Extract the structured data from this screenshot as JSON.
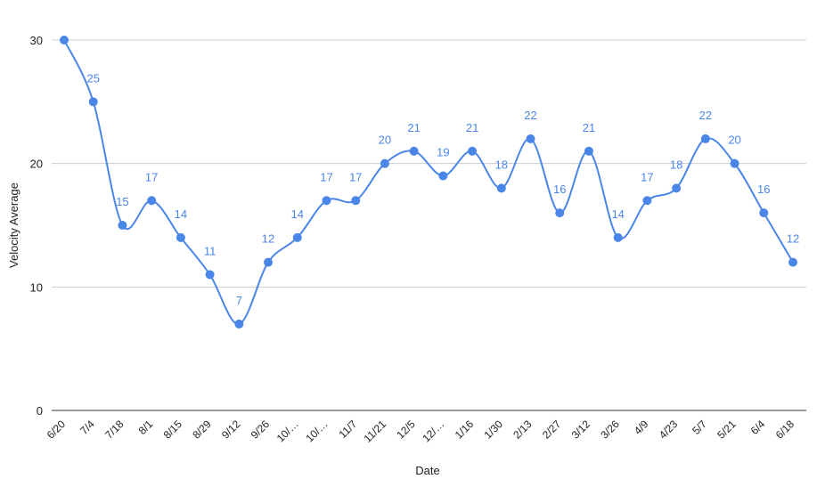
{
  "chart_data": {
    "type": "line",
    "xlabel": "Date",
    "ylabel": "Velocity Average",
    "ylim": [
      0,
      30
    ],
    "yticks": [
      0,
      10,
      20,
      30
    ],
    "grid": true,
    "legend": "none",
    "smooth": true,
    "series_color": "#4a86e8",
    "categories": [
      "6/20",
      "7/4",
      "7/18",
      "8/1",
      "8/15",
      "8/29",
      "9/12",
      "9/26",
      "10/…",
      "10/…",
      "11/7",
      "11/21",
      "12/5",
      "12/…",
      "1/16",
      "1/30",
      "2/13",
      "2/27",
      "3/12",
      "3/26",
      "4/9",
      "4/23",
      "5/7",
      "5/21",
      "6/4",
      "6/18"
    ],
    "values": [
      30,
      25,
      15,
      17,
      14,
      11,
      7,
      12,
      14,
      17,
      17,
      20,
      21,
      19,
      21,
      18,
      22,
      16,
      21,
      14,
      17,
      18,
      22,
      20,
      16,
      12
    ],
    "data_labels": [
      "",
      "25",
      "15",
      "17",
      "14",
      "11",
      "7",
      "12",
      "14",
      "17",
      "17",
      "20",
      "21",
      "19",
      "21",
      "18",
      "22",
      "16",
      "21",
      "14",
      "17",
      "18",
      "22",
      "20",
      "16",
      "12"
    ]
  }
}
